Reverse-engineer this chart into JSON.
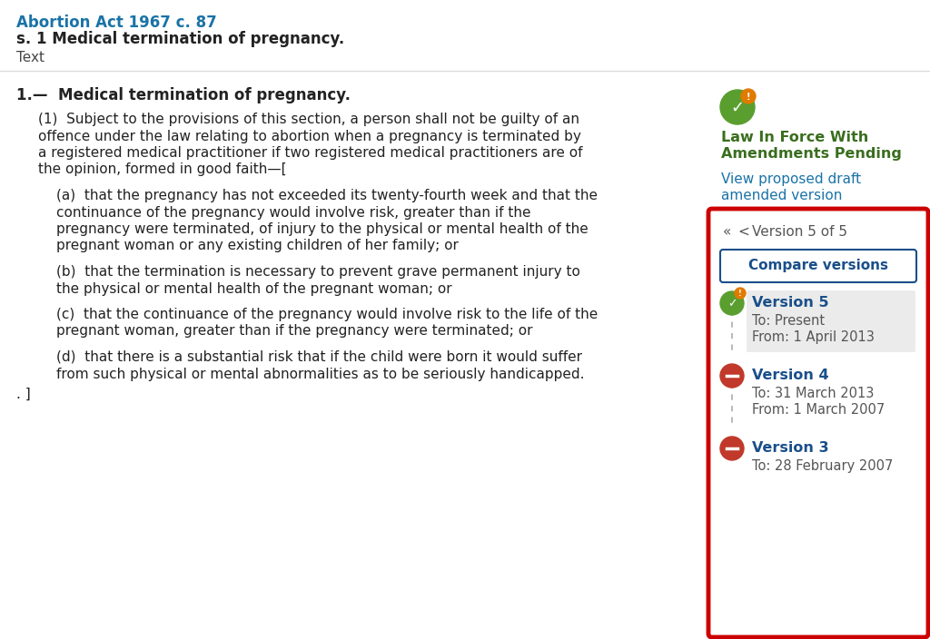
{
  "bg_color": "#ffffff",
  "header_line_color": "#dddddd",
  "title_link": "Abortion Act 1967 c. 87",
  "title_link_color": "#1a73a7",
  "subtitle": "s. 1 Medical termination of pregnancy.",
  "subtitle_color": "#222222",
  "subtext": "Text",
  "subtext_color": "#444444",
  "section_heading": "1.—  Medical termination of pregnancy.",
  "body_text_color": "#222222",
  "green_icon_color": "#5a9e2f",
  "orange_badge_color": "#e07b00",
  "status_title_line1": "Law In Force With",
  "status_title_line2": "Amendments Pending",
  "status_title_color": "#3a6e1f",
  "view_link_line1": "View proposed draft",
  "view_link_line2": "amended version",
  "view_link_color": "#1a73a7",
  "red_box_color": "#cc0000",
  "nav_text_parts": [
    "«",
    "<",
    "Version 5 of 5"
  ],
  "nav_color": "#555555",
  "compare_btn_text": "Compare versions",
  "compare_btn_color": "#1a4f8a",
  "compare_btn_border": "#1a4f8a",
  "compare_btn_bg": "#ffffff",
  "versions": [
    {
      "label": "Version 5",
      "to": "To: Present",
      "from": "From: 1 April 2013",
      "icon": "green",
      "highlighted": true
    },
    {
      "label": "Version 4",
      "to": "To: 31 March 2013",
      "from": "From: 1 March 2007",
      "icon": "red",
      "highlighted": false
    },
    {
      "label": "Version 3",
      "to": "To: 28 February 2007",
      "from": "",
      "icon": "red",
      "highlighted": false
    }
  ],
  "version_label_color": "#1a4f8a",
  "version_date_color": "#555555",
  "version_highlight_bg": "#ebebeb",
  "timeline_line_color": "#bbbbbb",
  "para0_lines": [
    "(1)  Subject to the provisions of this section, a person shall not be guilty of an",
    "offence under the law relating to abortion when a pregnancy is terminated by",
    "a registered medical practitioner if two registered medical practitioners are of",
    "the opinion, formed in good faith—["
  ],
  "para_a_lines": [
    "(a)  that the pregnancy has not exceeded its twenty-fourth week and that the",
    "continuance of the pregnancy would involve risk, greater than if the",
    "pregnancy were terminated, of injury to the physical or mental health of the",
    "pregnant woman or any existing children of her family; or"
  ],
  "para_b_lines": [
    "(b)  that the termination is necessary to prevent grave permanent injury to",
    "the physical or mental health of the pregnant woman; or"
  ],
  "para_c_lines": [
    "(c)  that the continuance of the pregnancy would involve risk to the life of the",
    "pregnant woman, greater than if the pregnancy were terminated; or"
  ],
  "para_d_lines": [
    "(d)  that there is a substantial risk that if the child were born it would suffer",
    "from such physical or mental abnormalities as to be seriously handicapped."
  ],
  "footer_line": ". ]"
}
